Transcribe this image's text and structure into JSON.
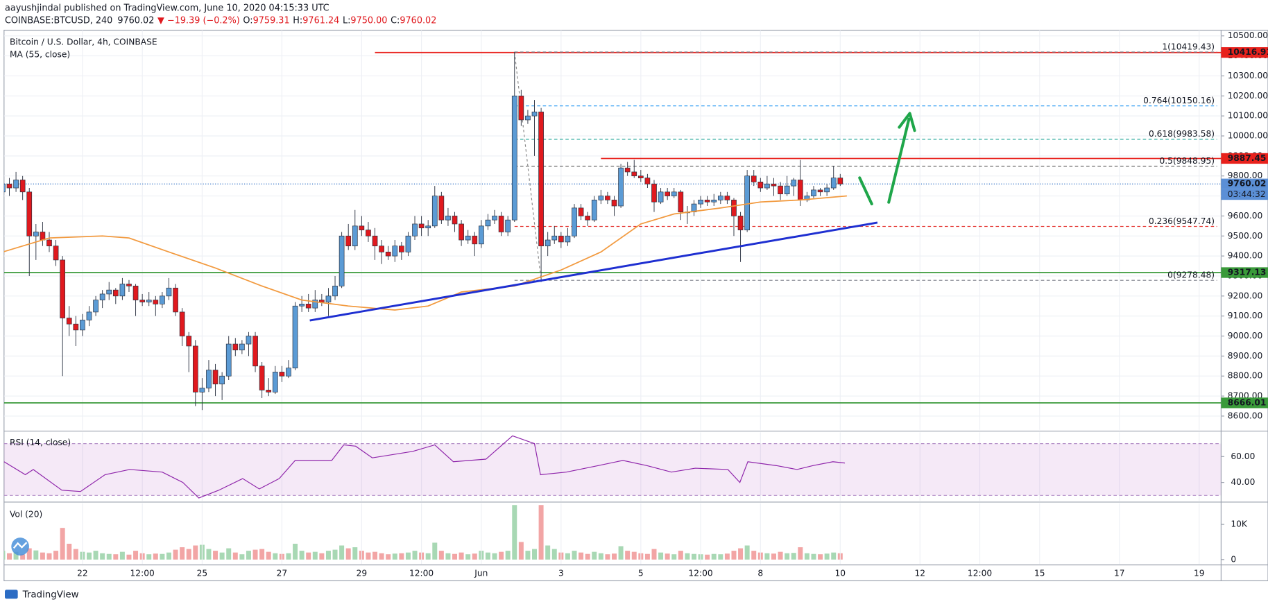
{
  "header": {
    "published": "aayushjindal published on TradingView.com, June 10, 2020 04:15:33 UTC",
    "symbol": "COINBASE:BTCUSD, 240",
    "last": "9760.02",
    "change": "▼ −19.39 (−0.2%)",
    "ohlc": [
      {
        "label": "O:",
        "value": "9759.31"
      },
      {
        "label": "H:",
        "value": "9761.24"
      },
      {
        "label": "L:",
        "value": "9750.00"
      },
      {
        "label": "C:",
        "value": "9760.02"
      }
    ]
  },
  "footer": "TradingView",
  "chart_data": {
    "type": "candlestick",
    "title": "Bitcoin / U.S. Dollar, 4h, COINBASE",
    "up_color": "#5b9bd5",
    "down_color": "#e0191e",
    "xlim": [
      0.2,
      183.3
    ],
    "xticks": [
      {
        "value": 12,
        "label": "22"
      },
      {
        "value": 21,
        "label": "12:00"
      },
      {
        "value": 30,
        "label": "25"
      },
      {
        "value": 42,
        "label": "27"
      },
      {
        "value": 54,
        "label": "29"
      },
      {
        "value": 63,
        "label": "12:00"
      },
      {
        "value": 72,
        "label": "Jun"
      },
      {
        "value": 84,
        "label": "3"
      },
      {
        "value": 96,
        "label": "5"
      },
      {
        "value": 105,
        "label": "12:00"
      },
      {
        "value": 114,
        "label": "8"
      },
      {
        "value": 126,
        "label": "10"
      },
      {
        "value": 138,
        "label": "12"
      },
      {
        "value": 147,
        "label": "12:00"
      },
      {
        "value": 156,
        "label": "15"
      },
      {
        "value": 168,
        "label": "17"
      },
      {
        "value": 180,
        "label": "19"
      }
    ],
    "ylim": [
      8531,
      10528.5
    ],
    "yticks": [
      {
        "value": 10500,
        "label": "10500.00"
      },
      {
        "value": 10400,
        "label": "10400.00"
      },
      {
        "value": 10300,
        "label": "10300.00"
      },
      {
        "value": 10200,
        "label": "10200.00"
      },
      {
        "value": 10100,
        "label": "10100.00"
      },
      {
        "value": 10000,
        "label": "10000.00"
      },
      {
        "value": 9900,
        "label": "9900.00"
      },
      {
        "value": 9800,
        "label": "9800.00"
      },
      {
        "value": 9700,
        "label": "9700.00"
      },
      {
        "value": 9600,
        "label": "9600.00"
      },
      {
        "value": 9500,
        "label": "9500.00"
      },
      {
        "value": 9400,
        "label": "9400.00"
      },
      {
        "value": 9300,
        "label": "9300.00"
      },
      {
        "value": 9200,
        "label": "9200.00"
      },
      {
        "value": 9100,
        "label": "9100.00"
      },
      {
        "value": 9000,
        "label": "9000.00"
      },
      {
        "value": 8900,
        "label": "8900.00"
      },
      {
        "value": 8800,
        "label": "8800.00"
      },
      {
        "value": 8700,
        "label": "8700.00"
      },
      {
        "value": 8600,
        "label": "8600.00"
      }
    ],
    "grid": true,
    "candles": [
      [
        9720,
        9830,
        9680,
        9760
      ],
      [
        9760,
        9790,
        9700,
        9740
      ],
      [
        9740,
        9820,
        9720,
        9780
      ],
      [
        9780,
        9800,
        9680,
        9720
      ],
      [
        9720,
        9740,
        9300,
        9500
      ],
      [
        9500,
        9560,
        9380,
        9520
      ],
      [
        9520,
        9570,
        9450,
        9480
      ],
      [
        9480,
        9520,
        9420,
        9450
      ],
      [
        9450,
        9480,
        9350,
        9380
      ],
      [
        9380,
        9400,
        8800,
        9090
      ],
      [
        9090,
        9150,
        9000,
        9060
      ],
      [
        9060,
        9100,
        8950,
        9030
      ],
      [
        9030,
        9110,
        9000,
        9080
      ],
      [
        9080,
        9150,
        9050,
        9120
      ],
      [
        9120,
        9200,
        9100,
        9180
      ],
      [
        9180,
        9230,
        9140,
        9210
      ],
      [
        9210,
        9270,
        9180,
        9230
      ],
      [
        9230,
        9240,
        9160,
        9200
      ],
      [
        9200,
        9290,
        9180,
        9260
      ],
      [
        9260,
        9280,
        9220,
        9250
      ],
      [
        9250,
        9260,
        9100,
        9180
      ],
      [
        9180,
        9210,
        9150,
        9170
      ],
      [
        9170,
        9220,
        9150,
        9180
      ],
      [
        9180,
        9200,
        9100,
        9160
      ],
      [
        9160,
        9220,
        9140,
        9200
      ],
      [
        9200,
        9290,
        9180,
        9240
      ],
      [
        9240,
        9260,
        9100,
        9120
      ],
      [
        9120,
        9140,
        8950,
        9000
      ],
      [
        9000,
        9020,
        8820,
        8950
      ],
      [
        8950,
        8980,
        8650,
        8720
      ],
      [
        8720,
        8790,
        8630,
        8740
      ],
      [
        8740,
        8880,
        8720,
        8830
      ],
      [
        8830,
        8860,
        8700,
        8760
      ],
      [
        8760,
        8820,
        8680,
        8800
      ],
      [
        8800,
        9000,
        8780,
        8960
      ],
      [
        8960,
        8990,
        8900,
        8930
      ],
      [
        8930,
        8980,
        8910,
        8960
      ],
      [
        8960,
        9020,
        8900,
        9000
      ],
      [
        9000,
        9020,
        8820,
        8850
      ],
      [
        8850,
        8870,
        8690,
        8730
      ],
      [
        8730,
        8790,
        8700,
        8720
      ],
      [
        8720,
        8850,
        8710,
        8820
      ],
      [
        8820,
        8850,
        8770,
        8800
      ],
      [
        8800,
        8880,
        8790,
        8840
      ],
      [
        8840,
        9170,
        8830,
        9150
      ],
      [
        9150,
        9200,
        9120,
        9160
      ],
      [
        9160,
        9210,
        9120,
        9140
      ],
      [
        9140,
        9230,
        9120,
        9180
      ],
      [
        9180,
        9210,
        9150,
        9170
      ],
      [
        9170,
        9240,
        9100,
        9200
      ],
      [
        9200,
        9300,
        9180,
        9250
      ],
      [
        9250,
        9520,
        9240,
        9500
      ],
      [
        9500,
        9560,
        9430,
        9450
      ],
      [
        9450,
        9630,
        9430,
        9550
      ],
      [
        9550,
        9600,
        9500,
        9530
      ],
      [
        9530,
        9570,
        9470,
        9500
      ],
      [
        9500,
        9540,
        9380,
        9450
      ],
      [
        9450,
        9480,
        9360,
        9420
      ],
      [
        9420,
        9450,
        9380,
        9400
      ],
      [
        9400,
        9480,
        9370,
        9450
      ],
      [
        9450,
        9470,
        9380,
        9420
      ],
      [
        9420,
        9520,
        9400,
        9500
      ],
      [
        9500,
        9600,
        9480,
        9560
      ],
      [
        9560,
        9600,
        9500,
        9540
      ],
      [
        9540,
        9580,
        9500,
        9550
      ],
      [
        9550,
        9750,
        9540,
        9700
      ],
      [
        9700,
        9720,
        9560,
        9580
      ],
      [
        9580,
        9640,
        9550,
        9600
      ],
      [
        9600,
        9620,
        9520,
        9560
      ],
      [
        9560,
        9580,
        9450,
        9480
      ],
      [
        9480,
        9530,
        9460,
        9500
      ],
      [
        9500,
        9520,
        9400,
        9460
      ],
      [
        9460,
        9580,
        9440,
        9550
      ],
      [
        9550,
        9610,
        9530,
        9580
      ],
      [
        9580,
        9630,
        9560,
        9600
      ],
      [
        9600,
        9620,
        9500,
        9520
      ],
      [
        9520,
        9600,
        9500,
        9580
      ],
      [
        9580,
        10420,
        9570,
        10200
      ],
      [
        10200,
        10230,
        10050,
        10080
      ],
      [
        10080,
        10130,
        10060,
        10100
      ],
      [
        10100,
        10180,
        9900,
        10120
      ],
      [
        10120,
        10140,
        9270,
        9450
      ],
      [
        9450,
        9520,
        9400,
        9480
      ],
      [
        9480,
        9550,
        9460,
        9500
      ],
      [
        9500,
        9520,
        9440,
        9470
      ],
      [
        9470,
        9540,
        9450,
        9500
      ],
      [
        9500,
        9660,
        9490,
        9640
      ],
      [
        9640,
        9660,
        9580,
        9600
      ],
      [
        9600,
        9620,
        9550,
        9580
      ],
      [
        9580,
        9700,
        9570,
        9680
      ],
      [
        9680,
        9730,
        9660,
        9700
      ],
      [
        9700,
        9720,
        9660,
        9680
      ],
      [
        9680,
        9700,
        9600,
        9650
      ],
      [
        9650,
        9860,
        9640,
        9840
      ],
      [
        9840,
        9870,
        9800,
        9820
      ],
      [
        9820,
        9880,
        9790,
        9800
      ],
      [
        9800,
        9830,
        9770,
        9790
      ],
      [
        9790,
        9810,
        9740,
        9760
      ],
      [
        9760,
        9780,
        9620,
        9670
      ],
      [
        9670,
        9740,
        9660,
        9720
      ],
      [
        9720,
        9740,
        9680,
        9700
      ],
      [
        9700,
        9740,
        9690,
        9720
      ],
      [
        9720,
        9730,
        9580,
        9620
      ],
      [
        9620,
        9650,
        9560,
        9620
      ],
      [
        9620,
        9680,
        9600,
        9660
      ],
      [
        9660,
        9700,
        9640,
        9680
      ],
      [
        9680,
        9700,
        9650,
        9670
      ],
      [
        9670,
        9710,
        9650,
        9680
      ],
      [
        9680,
        9720,
        9660,
        9700
      ],
      [
        9700,
        9720,
        9660,
        9680
      ],
      [
        9680,
        9690,
        9500,
        9600
      ],
      [
        9600,
        9620,
        9370,
        9530
      ],
      [
        9530,
        9830,
        9520,
        9800
      ],
      [
        9800,
        9830,
        9750,
        9770
      ],
      [
        9770,
        9790,
        9720,
        9740
      ],
      [
        9740,
        9800,
        9730,
        9760
      ],
      [
        9760,
        9790,
        9700,
        9750
      ],
      [
        9750,
        9770,
        9680,
        9710
      ],
      [
        9710,
        9800,
        9700,
        9750
      ],
      [
        9750,
        9790,
        9700,
        9780
      ],
      [
        9780,
        9880,
        9650,
        9680
      ],
      [
        9680,
        9720,
        9670,
        9700
      ],
      [
        9700,
        9750,
        9690,
        9730
      ],
      [
        9730,
        9740,
        9700,
        9720
      ],
      [
        9720,
        9760,
        9700,
        9740
      ],
      [
        9740,
        9850,
        9730,
        9790
      ],
      [
        9790,
        9810,
        9750,
        9760
      ]
    ],
    "ma": {
      "label": "MA (55, close)",
      "color": "#f29a3f",
      "x": [
        0,
        7,
        15,
        19,
        25,
        32,
        39,
        45,
        52,
        59,
        64,
        69,
        77,
        84,
        90,
        96,
        101,
        108,
        114,
        120,
        127
      ],
      "values": [
        9420,
        9490,
        9500,
        9490,
        9420,
        9340,
        9250,
        9180,
        9150,
        9130,
        9150,
        9220,
        9250,
        9330,
        9420,
        9560,
        9610,
        9640,
        9670,
        9680,
        9700
      ]
    },
    "trendline": {
      "color": "#1e2fd1",
      "x": [
        46.2,
        131.6
      ],
      "y": [
        9078,
        9567
      ]
    },
    "levels": [
      {
        "price": 10416.91,
        "start": 56,
        "color": "#e8211c"
      },
      {
        "price": 9887.45,
        "start": 90,
        "color": "#e8211c"
      },
      {
        "price": 9317.13,
        "start": 0.2,
        "color": "#3a9a3a"
      },
      {
        "price": 8666.01,
        "start": 0.2,
        "color": "#3a9a3a"
      }
    ],
    "last_price": {
      "price": 9760.02,
      "color": "#2a6cc4"
    },
    "price_labels": [
      {
        "value": 10416.91,
        "label": "10416.91",
        "color": "#e8211c"
      },
      {
        "value": 9887.45,
        "label": "9887.45",
        "color": "#e8211c"
      },
      {
        "value": 9760.02,
        "label": "9760.02",
        "color": "#5b8fd6"
      },
      {
        "value": 9317.13,
        "label": "9317.13",
        "color": "#3a9a3a"
      },
      {
        "value": 8666.01,
        "label": "8666.01",
        "color": "#3a9a3a"
      }
    ],
    "countdown": "03:44:32",
    "fib": {
      "from_x": 77,
      "to_x": 81,
      "levels": [
        {
          "price": 10419.43,
          "label": "1(10419.43)",
          "color": "#787b86"
        },
        {
          "price": 10150.16,
          "label": "0.764(10150.16)",
          "color": "#2196f3"
        },
        {
          "price": 9983.58,
          "label": "0.618(9983.58)",
          "color": "#26a69a"
        },
        {
          "price": 9848.95,
          "label": "0.5(9848.95)",
          "color": "#555555"
        },
        {
          "price": 9547.74,
          "label": "0.236(9547.74)",
          "color": "#e53935"
        },
        {
          "price": 9278.48,
          "label": "0(9278.48)",
          "color": "#787b86"
        }
      ]
    },
    "rsi": {
      "label": "RSI (14, close)",
      "color": "#8e24aa",
      "ylim": [
        25.8,
        78.7
      ],
      "yticks": [
        {
          "value": 60,
          "label": "60.00"
        },
        {
          "value": 40,
          "label": "40.00"
        }
      ],
      "band": [
        30,
        70
      ],
      "x": [
        0.2,
        3.4,
        4.6,
        8.9,
        11.7,
        15.4,
        19.1,
        24,
        27.1,
        29.5,
        32.5,
        36.1,
        38.6,
        41.6,
        44,
        49.5,
        51.3,
        53.1,
        55.6,
        61.7,
        65,
        67.8,
        72.7,
        76.7,
        80,
        80.9,
        84.8,
        89.6,
        93.3,
        96.9,
        100.6,
        104.2,
        109.1,
        110.9,
        112.1,
        116.4,
        119.5,
        121.9,
        124.9,
        126.7
      ],
      "values": [
        56,
        46,
        50,
        34,
        33,
        46,
        50,
        48,
        40,
        28,
        34,
        43,
        35,
        43,
        57,
        57,
        69,
        68,
        59,
        64,
        69,
        56,
        58,
        76,
        70,
        46,
        48,
        53,
        57,
        53,
        48,
        51,
        50,
        40,
        56,
        53,
        50,
        53,
        56,
        55
      ]
    },
    "volume": {
      "label": "Vol (20)",
      "ylim": [
        -1400,
        16000
      ],
      "yticks": [
        {
          "value": 10000,
          "label": "10K"
        },
        0
      ],
      "values": [
        2500,
        1800,
        2200,
        1500,
        3200,
        2600,
        2000,
        1800,
        2500,
        9000,
        4500,
        3000,
        2200,
        2000,
        2500,
        1800,
        1600,
        1500,
        2200,
        1400,
        2500,
        1800,
        1500,
        1700,
        1600,
        2000,
        2800,
        3500,
        3000,
        4000,
        4200,
        3000,
        2500,
        2000,
        3200,
        2000,
        1500,
        2500,
        2800,
        3000,
        2200,
        1800,
        1600,
        1800,
        4500,
        2500,
        2000,
        2200,
        1800,
        2500,
        2800,
        4000,
        3200,
        3500,
        2500,
        2000,
        2200,
        1800,
        1500,
        1700,
        1800,
        2000,
        2500,
        2000,
        1800,
        4800,
        2500,
        1800,
        1600,
        2000,
        1500,
        1700,
        2500,
        2000,
        1800,
        2200,
        2500,
        15500,
        5000,
        2500,
        3000,
        15500,
        4000,
        3000,
        2000,
        1800,
        2500,
        2000,
        1600,
        2200,
        1800,
        1500,
        1700,
        3800,
        2500,
        2200,
        1800,
        1600,
        3000,
        2000,
        1700,
        1500,
        2500,
        1800,
        1600,
        1500,
        1400,
        1600,
        1500,
        1700,
        2500,
        3200,
        4000,
        2500,
        2000,
        1800,
        1700,
        2200,
        1800,
        1900,
        3500,
        1800,
        1600,
        1500,
        1700,
        2000,
        1800
      ],
      "up_color": "#a8d8b4",
      "down_color": "#f2a5a5"
    }
  }
}
